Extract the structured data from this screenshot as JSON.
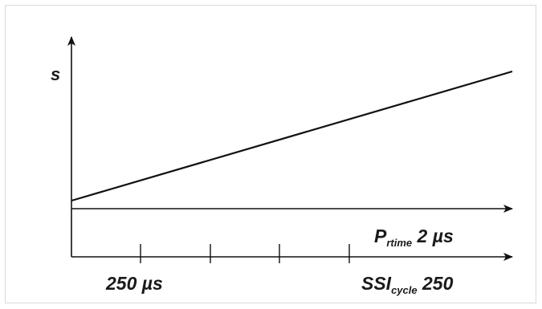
{
  "diagram": {
    "y_axis_label": "s",
    "prtime_label": {
      "main": "P",
      "sub": "rtime",
      "value": " 2 µs"
    },
    "tick_label_left": "250 µs",
    "ssi_label": {
      "main": "SSI",
      "sub": "cycle",
      "value": " 250"
    },
    "colors": {
      "line": "#111111",
      "frame": "#d9d9d9"
    }
  }
}
